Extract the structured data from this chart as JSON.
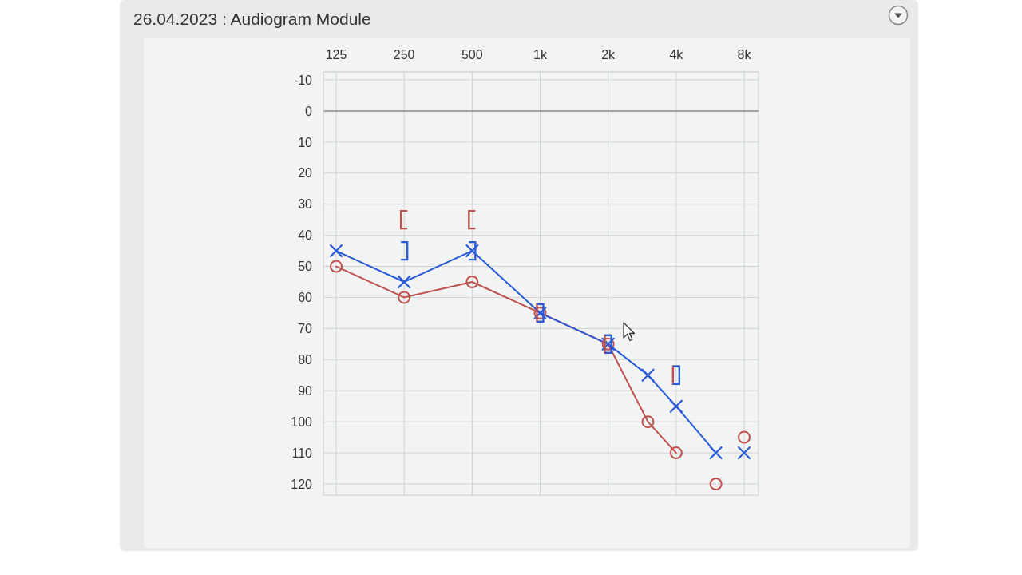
{
  "chart_data": {
    "type": "line",
    "title": "26.04.2023 : Audiogram Module",
    "xlim": [
      125,
      8000
    ],
    "xticks": [
      125,
      250,
      500,
      {
        "value": 1000,
        "label": "1k"
      },
      {
        "value": 2000,
        "label": "2k"
      },
      {
        "value": 4000,
        "label": "4k"
      },
      {
        "value": 8000,
        "label": "8k"
      }
    ],
    "log": "x",
    "ylim": [
      120,
      -10
    ],
    "yticks": [
      -10,
      0,
      10,
      20,
      30,
      40,
      50,
      60,
      70,
      80,
      90,
      100,
      110,
      120
    ],
    "grid": true,
    "ref_lines": [
      {
        "axis": "y",
        "value": 0,
        "color": "#8c8c8c"
      }
    ],
    "series": [
      {
        "type": "line",
        "color": "#c0504d",
        "marker": "circle",
        "x": [
          125,
          250,
          500,
          1000,
          2000,
          3000,
          4000
        ],
        "values": [
          50,
          60,
          55,
          65,
          75,
          100,
          110
        ]
      },
      {
        "type": "scatter",
        "color": "#c0504d",
        "marker": "circle",
        "x": [
          6000,
          8000
        ],
        "values": [
          120,
          105
        ]
      },
      {
        "type": "line",
        "color": "#2a5bd7",
        "marker": "cross",
        "x": [
          125,
          250,
          500,
          1000,
          2000,
          3000,
          4000,
          6000
        ],
        "values": [
          45,
          55,
          45,
          65,
          75,
          85,
          95,
          110
        ]
      },
      {
        "type": "scatter",
        "color": "#2a5bd7",
        "marker": "cross",
        "x": [
          8000
        ],
        "values": [
          110
        ]
      },
      {
        "type": "scatter",
        "color": "#c0504d",
        "x": [
          250,
          500,
          1000,
          2000,
          4000
        ],
        "values": [
          35,
          35,
          65,
          75,
          85
        ]
      },
      {
        "type": "scatter",
        "color": "#2a5bd7",
        "x": [
          250,
          500,
          1000,
          2000,
          4000
        ],
        "values": [
          45,
          45,
          65,
          75,
          85
        ]
      }
    ]
  }
}
